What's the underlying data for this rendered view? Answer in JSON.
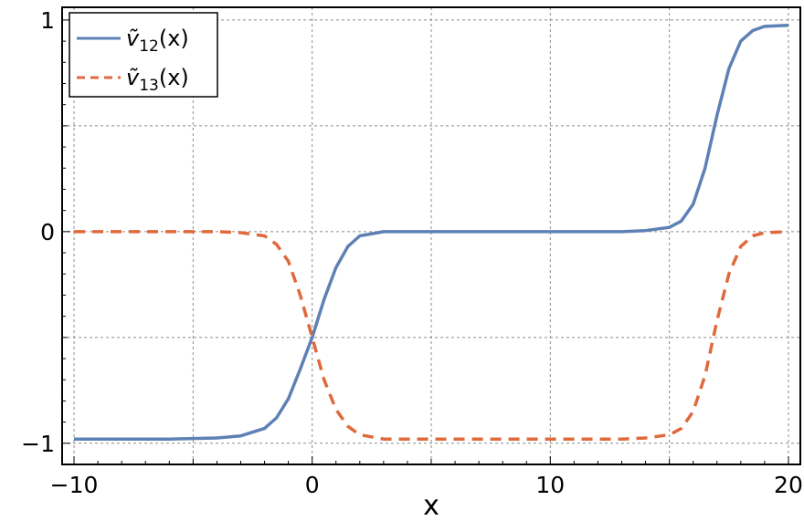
{
  "chart_data": {
    "type": "line",
    "xlabel": "x",
    "ylabel": "",
    "xlim": [
      -10.5,
      20.5
    ],
    "ylim": [
      -1.1,
      1.06
    ],
    "xticks": [
      {
        "value": -10,
        "label": "−10"
      },
      {
        "value": 0,
        "label": "0"
      },
      {
        "value": 10,
        "label": "10"
      },
      {
        "value": 20,
        "label": "20"
      }
    ],
    "yticks": [
      {
        "value": -1,
        "label": "−1"
      },
      {
        "value": 0,
        "label": "0"
      },
      {
        "value": 1,
        "label": "1"
      }
    ],
    "grid": true,
    "grid_x": [
      -10,
      -5,
      0,
      5,
      10,
      15,
      20
    ],
    "grid_y": [
      -1,
      -0.5,
      0,
      0.5,
      1
    ],
    "legend": {
      "position": "top-left",
      "entries": [
        {
          "label_base": "ṽ",
          "label_sub": "12",
          "label_tail": "(x)"
        },
        {
          "label_base": "ṽ",
          "label_sub": "13",
          "label_tail": "(x)"
        }
      ]
    },
    "series": [
      {
        "label": "ṽ12(x)",
        "color": "#5e81b5",
        "dash": "solid",
        "x": [
          -10,
          -8,
          -6,
          -4,
          -3,
          -2,
          -1.5,
          -1,
          -0.5,
          0,
          0.5,
          1,
          1.5,
          2,
          3,
          4,
          6,
          8,
          10,
          12,
          13,
          14,
          15,
          15.5,
          16,
          16.5,
          17,
          17.5,
          18,
          18.5,
          19,
          20
        ],
        "y": [
          -0.98,
          -0.98,
          -0.98,
          -0.975,
          -0.965,
          -0.93,
          -0.88,
          -0.79,
          -0.65,
          -0.5,
          -0.32,
          -0.17,
          -0.07,
          -0.02,
          0,
          0,
          0,
          0,
          0,
          0,
          0,
          0.005,
          0.02,
          0.05,
          0.13,
          0.3,
          0.55,
          0.77,
          0.9,
          0.95,
          0.97,
          0.975
        ]
      },
      {
        "label": "ṽ13(x)",
        "color": "#e0693c",
        "dash": "dashed",
        "x": [
          -10,
          -8,
          -6,
          -4,
          -3,
          -2,
          -1.5,
          -1,
          -0.5,
          0,
          0.5,
          1,
          1.5,
          2,
          3,
          4,
          6,
          8,
          10,
          12,
          13,
          14,
          15,
          15.5,
          16,
          16.5,
          17,
          17.5,
          18,
          18.5,
          19,
          20
        ],
        "y": [
          0,
          0,
          0,
          0,
          -0.005,
          -0.02,
          -0.06,
          -0.14,
          -0.3,
          -0.5,
          -0.7,
          -0.84,
          -0.92,
          -0.96,
          -0.98,
          -0.98,
          -0.98,
          -0.98,
          -0.98,
          -0.98,
          -0.98,
          -0.975,
          -0.96,
          -0.93,
          -0.85,
          -0.68,
          -0.42,
          -0.2,
          -0.07,
          -0.02,
          -0.005,
          0
        ]
      }
    ]
  }
}
